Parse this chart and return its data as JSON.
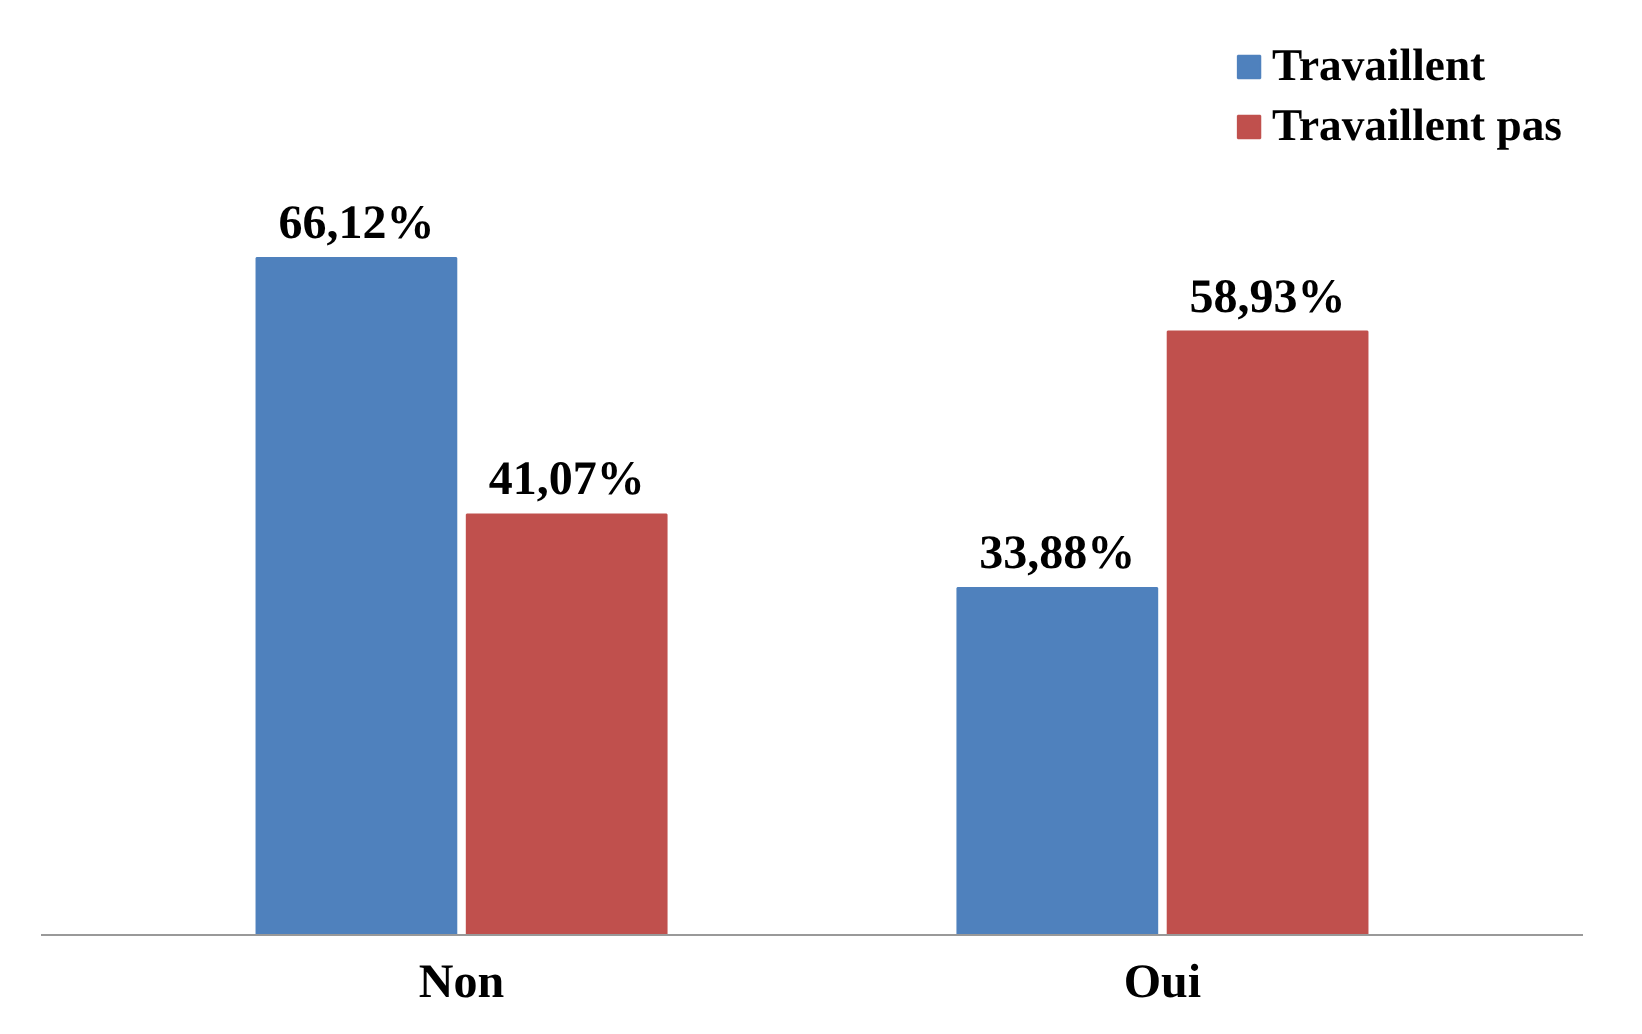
{
  "chart_data": {
    "type": "bar",
    "categories": [
      "Non",
      "Oui"
    ],
    "series": [
      {
        "name": "Travaillent",
        "color": "#4f81bd",
        "values": [
          66.12,
          33.88
        ],
        "value_labels": [
          "66,12%",
          "33,88%"
        ]
      },
      {
        "name": "Travaillent pas",
        "color": "#c0504d",
        "values": [
          41.07,
          58.93
        ],
        "value_labels": [
          "41,07%",
          "58,93%"
        ]
      }
    ],
    "legend": "top right",
    "grid": false
  }
}
